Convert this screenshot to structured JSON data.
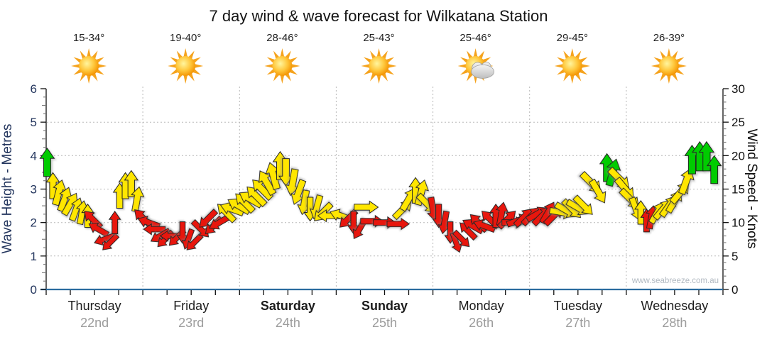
{
  "title": "7 day wind & wave forecast for Wilkatana Station",
  "watermark": "www.seabreeze.com.au",
  "axes": {
    "left_title": "Wave Height - Metres",
    "right_title": "Wind Speed - Knots"
  },
  "days": [
    {
      "name": "Thursday",
      "date": "22nd",
      "temp": "15-34°",
      "icon": "sunny",
      "bold": false
    },
    {
      "name": "Friday",
      "date": "23rd",
      "temp": "19-40°",
      "icon": "sunny",
      "bold": false
    },
    {
      "name": "Saturday",
      "date": "24th",
      "temp": "28-46°",
      "icon": "sunny",
      "bold": true
    },
    {
      "name": "Sunday",
      "date": "25th",
      "temp": "25-43°",
      "icon": "sunny",
      "bold": true
    },
    {
      "name": "Monday",
      "date": "26th",
      "temp": "25-46°",
      "icon": "partly-cloudy",
      "bold": false
    },
    {
      "name": "Tuesday",
      "date": "27th",
      "temp": "29-45°",
      "icon": "sunny",
      "bold": false
    },
    {
      "name": "Wednesday",
      "date": "28th",
      "temp": "26-39°",
      "icon": "sunny",
      "bold": false
    }
  ],
  "chart_data": {
    "type": "wind-arrow-timeseries",
    "title": "7 day wind & wave forecast for Wilkatana Station",
    "x": {
      "range_days": [
        0,
        7
      ],
      "day_labels": [
        "Thursday 22nd",
        "Friday 23rd",
        "Saturday 24th",
        "Sunday 25th",
        "Monday 26th",
        "Tuesday 27th",
        "Wednesday 28th"
      ],
      "minor_ticks_per_day": 4
    },
    "y_left": {
      "label": "Wave Height - Metres",
      "range": [
        0,
        6
      ],
      "unit": "m",
      "ticks": [
        0,
        1,
        2,
        3,
        4,
        5,
        6
      ]
    },
    "y_right": {
      "label": "Wind Speed - Knots",
      "range": [
        0,
        30
      ],
      "unit": "kn",
      "ticks": [
        0,
        5,
        10,
        15,
        20,
        25,
        30
      ]
    },
    "grid": "dotted horizontal line each 1 m / 5 kn; dotted vertical line at each day boundary",
    "dir_convention": "d = arrow heading in degrees clockwise, 0 points up",
    "colors": {
      "green": "#00CC00",
      "yellow": "#FFE605",
      "red": "#E81507",
      "sun_ray": "#F5A31E",
      "arrow_outline": "#222222",
      "axis_base": "#2B6C9F"
    },
    "arrows": [
      {
        "t": 0.01,
        "k": 19.0,
        "d": 0,
        "c": "green"
      },
      {
        "t": 0.07,
        "k": 15.5,
        "d": 0,
        "c": "yellow"
      },
      {
        "t": 0.13,
        "k": 14.5,
        "d": 15,
        "c": "yellow"
      },
      {
        "t": 0.19,
        "k": 13.5,
        "d": 20,
        "c": "yellow"
      },
      {
        "t": 0.25,
        "k": 12.8,
        "d": 30,
        "c": "yellow"
      },
      {
        "t": 0.31,
        "k": 12.0,
        "d": 20,
        "c": "yellow"
      },
      {
        "t": 0.37,
        "k": 11.5,
        "d": 10,
        "c": "yellow"
      },
      {
        "t": 0.43,
        "k": 11.0,
        "d": 0,
        "c": "yellow"
      },
      {
        "t": 0.48,
        "k": 10.5,
        "d": 315,
        "c": "red"
      },
      {
        "t": 0.54,
        "k": 9.0,
        "d": 300,
        "c": "red"
      },
      {
        "t": 0.6,
        "k": 7.5,
        "d": 250,
        "c": "red"
      },
      {
        "t": 0.66,
        "k": 7.0,
        "d": 225,
        "c": "red"
      },
      {
        "t": 0.71,
        "k": 10.0,
        "d": 0,
        "c": "red"
      },
      {
        "t": 0.76,
        "k": 14.0,
        "d": 0,
        "c": "yellow"
      },
      {
        "t": 0.82,
        "k": 15.5,
        "d": 0,
        "c": "yellow"
      },
      {
        "t": 0.88,
        "k": 15.8,
        "d": 0,
        "c": "yellow"
      },
      {
        "t": 0.94,
        "k": 13.5,
        "d": 10,
        "c": "yellow"
      },
      {
        "t": 1.0,
        "k": 10.7,
        "d": 315,
        "c": "red"
      },
      {
        "t": 1.06,
        "k": 10.0,
        "d": 290,
        "c": "red"
      },
      {
        "t": 1.12,
        "k": 9.0,
        "d": 270,
        "c": "red"
      },
      {
        "t": 1.18,
        "k": 8.0,
        "d": 240,
        "c": "red"
      },
      {
        "t": 1.23,
        "k": 7.5,
        "d": 225,
        "c": "red"
      },
      {
        "t": 1.29,
        "k": 8.0,
        "d": 270,
        "c": "red"
      },
      {
        "t": 1.35,
        "k": 7.7,
        "d": 225,
        "c": "red"
      },
      {
        "t": 1.41,
        "k": 8.5,
        "d": 180,
        "c": "red"
      },
      {
        "t": 1.47,
        "k": 7.5,
        "d": 200,
        "c": "red"
      },
      {
        "t": 1.53,
        "k": 7.0,
        "d": 225,
        "c": "red"
      },
      {
        "t": 1.6,
        "k": 9.0,
        "d": 135,
        "c": "red"
      },
      {
        "t": 1.67,
        "k": 10.5,
        "d": 225,
        "c": "red"
      },
      {
        "t": 1.73,
        "k": 9.5,
        "d": 225,
        "c": "red"
      },
      {
        "t": 1.79,
        "k": 10.0,
        "d": 240,
        "c": "red"
      },
      {
        "t": 1.86,
        "k": 11.5,
        "d": 315,
        "c": "yellow"
      },
      {
        "t": 1.92,
        "k": 12.0,
        "d": 290,
        "c": "yellow"
      },
      {
        "t": 1.99,
        "k": 12.5,
        "d": 300,
        "c": "yellow"
      },
      {
        "t": 2.05,
        "k": 13.0,
        "d": 315,
        "c": "yellow"
      },
      {
        "t": 2.11,
        "k": 13.5,
        "d": 300,
        "c": "yellow"
      },
      {
        "t": 2.17,
        "k": 14.0,
        "d": 315,
        "c": "yellow"
      },
      {
        "t": 2.23,
        "k": 15.0,
        "d": 315,
        "c": "yellow"
      },
      {
        "t": 2.28,
        "k": 16.0,
        "d": 330,
        "c": "yellow"
      },
      {
        "t": 2.35,
        "k": 17.0,
        "d": 345,
        "c": "yellow"
      },
      {
        "t": 2.42,
        "k": 18.5,
        "d": 0,
        "c": "yellow"
      },
      {
        "t": 2.48,
        "k": 17.5,
        "d": 180,
        "c": "yellow"
      },
      {
        "t": 2.55,
        "k": 16.0,
        "d": 190,
        "c": "yellow"
      },
      {
        "t": 2.61,
        "k": 14.5,
        "d": 200,
        "c": "yellow"
      },
      {
        "t": 2.67,
        "k": 13.0,
        "d": 190,
        "c": "yellow"
      },
      {
        "t": 2.73,
        "k": 12.0,
        "d": 180,
        "c": "yellow"
      },
      {
        "t": 2.8,
        "k": 12.3,
        "d": 195,
        "c": "yellow"
      },
      {
        "t": 2.86,
        "k": 11.5,
        "d": 225,
        "c": "yellow"
      },
      {
        "t": 2.93,
        "k": 11.0,
        "d": 270,
        "c": "yellow"
      },
      {
        "t": 3.05,
        "k": 11.0,
        "d": 290,
        "c": "yellow"
      },
      {
        "t": 3.12,
        "k": 10.5,
        "d": 225,
        "c": "red"
      },
      {
        "t": 3.18,
        "k": 10.0,
        "d": 180,
        "c": "red"
      },
      {
        "t": 3.24,
        "k": 9.0,
        "d": 210,
        "c": "red"
      },
      {
        "t": 3.31,
        "k": 12.3,
        "d": 90,
        "c": "yellow"
      },
      {
        "t": 3.37,
        "k": 10.2,
        "d": 90,
        "c": "red"
      },
      {
        "t": 3.5,
        "k": 10.0,
        "d": 90,
        "c": "red"
      },
      {
        "t": 3.64,
        "k": 9.8,
        "d": 90,
        "c": "red"
      },
      {
        "t": 3.69,
        "k": 12.0,
        "d": 45,
        "c": "yellow"
      },
      {
        "t": 3.75,
        "k": 13.5,
        "d": 30,
        "c": "yellow"
      },
      {
        "t": 3.82,
        "k": 14.8,
        "d": 0,
        "c": "yellow"
      },
      {
        "t": 3.88,
        "k": 14.5,
        "d": 15,
        "c": "yellow"
      },
      {
        "t": 3.94,
        "k": 12.8,
        "d": 135,
        "c": "yellow"
      },
      {
        "t": 4.0,
        "k": 12.0,
        "d": 170,
        "c": "red"
      },
      {
        "t": 4.06,
        "k": 11.0,
        "d": 180,
        "c": "red"
      },
      {
        "t": 4.12,
        "k": 10.0,
        "d": 190,
        "c": "red"
      },
      {
        "t": 4.18,
        "k": 8.5,
        "d": 180,
        "c": "red"
      },
      {
        "t": 4.24,
        "k": 7.0,
        "d": 160,
        "c": "red"
      },
      {
        "t": 4.3,
        "k": 7.5,
        "d": 135,
        "c": "red"
      },
      {
        "t": 4.36,
        "k": 8.8,
        "d": 315,
        "c": "red"
      },
      {
        "t": 4.41,
        "k": 9.5,
        "d": 300,
        "c": "red"
      },
      {
        "t": 4.47,
        "k": 10.0,
        "d": 315,
        "c": "red"
      },
      {
        "t": 4.53,
        "k": 9.5,
        "d": 290,
        "c": "red"
      },
      {
        "t": 4.59,
        "k": 10.5,
        "d": 315,
        "c": "red"
      },
      {
        "t": 4.65,
        "k": 11.0,
        "d": 0,
        "c": "red"
      },
      {
        "t": 4.71,
        "k": 11.3,
        "d": 10,
        "c": "red"
      },
      {
        "t": 4.77,
        "k": 10.5,
        "d": 45,
        "c": "red"
      },
      {
        "t": 4.83,
        "k": 10.0,
        "d": 90,
        "c": "red"
      },
      {
        "t": 4.88,
        "k": 10.3,
        "d": 70,
        "c": "red"
      },
      {
        "t": 4.94,
        "k": 10.8,
        "d": 45,
        "c": "red"
      },
      {
        "t": 5.02,
        "k": 11.0,
        "d": 45,
        "c": "red"
      },
      {
        "t": 5.08,
        "k": 11.3,
        "d": 60,
        "c": "red"
      },
      {
        "t": 5.13,
        "k": 11.0,
        "d": 45,
        "c": "red"
      },
      {
        "t": 5.19,
        "k": 11.5,
        "d": 30,
        "c": "red"
      },
      {
        "t": 5.25,
        "k": 11.0,
        "d": 45,
        "c": "red"
      },
      {
        "t": 5.33,
        "k": 11.5,
        "d": 100,
        "c": "yellow"
      },
      {
        "t": 5.38,
        "k": 11.8,
        "d": 120,
        "c": "yellow"
      },
      {
        "t": 5.44,
        "k": 12.0,
        "d": 135,
        "c": "yellow"
      },
      {
        "t": 5.5,
        "k": 12.2,
        "d": 120,
        "c": "yellow"
      },
      {
        "t": 5.56,
        "k": 12.5,
        "d": 135,
        "c": "yellow"
      },
      {
        "t": 5.64,
        "k": 15.9,
        "d": 135,
        "c": "yellow"
      },
      {
        "t": 5.71,
        "k": 14.6,
        "d": 150,
        "c": "yellow"
      },
      {
        "t": 5.8,
        "k": 18.2,
        "d": 0,
        "c": "green"
      },
      {
        "t": 5.86,
        "k": 17.5,
        "d": 15,
        "c": "green"
      },
      {
        "t": 5.93,
        "k": 16.5,
        "d": 135,
        "c": "yellow"
      },
      {
        "t": 5.99,
        "k": 15.0,
        "d": 140,
        "c": "yellow"
      },
      {
        "t": 6.04,
        "k": 13.5,
        "d": 135,
        "c": "yellow"
      },
      {
        "t": 6.1,
        "k": 12.0,
        "d": 160,
        "c": "yellow"
      },
      {
        "t": 6.15,
        "k": 11.5,
        "d": 0,
        "c": "yellow"
      },
      {
        "t": 6.21,
        "k": 10.3,
        "d": 0,
        "c": "red"
      },
      {
        "t": 6.26,
        "k": 10.8,
        "d": 10,
        "c": "red"
      },
      {
        "t": 6.32,
        "k": 11.5,
        "d": 30,
        "c": "yellow"
      },
      {
        "t": 6.38,
        "k": 12.0,
        "d": 40,
        "c": "yellow"
      },
      {
        "t": 6.44,
        "k": 12.5,
        "d": 35,
        "c": "yellow"
      },
      {
        "t": 6.5,
        "k": 13.2,
        "d": 30,
        "c": "yellow"
      },
      {
        "t": 6.56,
        "k": 14.5,
        "d": 40,
        "c": "yellow"
      },
      {
        "t": 6.62,
        "k": 16.2,
        "d": 20,
        "c": "yellow"
      },
      {
        "t": 6.68,
        "k": 19.4,
        "d": 0,
        "c": "green"
      },
      {
        "t": 6.76,
        "k": 19.9,
        "d": 0,
        "c": "green"
      },
      {
        "t": 6.83,
        "k": 19.9,
        "d": 0,
        "c": "green"
      },
      {
        "t": 6.91,
        "k": 17.9,
        "d": 0,
        "c": "green"
      }
    ]
  }
}
